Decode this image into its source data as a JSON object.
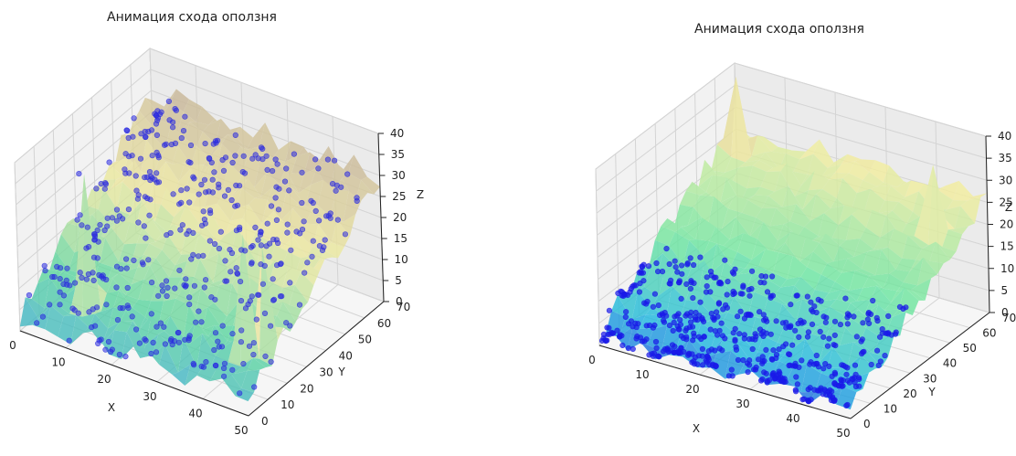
{
  "chart_data": [
    {
      "type": "scatter",
      "subtype": "3d-surface-with-scatter",
      "title": "Анимация схода оползня",
      "xlabel": "X",
      "ylabel": "Y",
      "zlabel": "Z",
      "xticks": [
        "0",
        "10",
        "20",
        "30",
        "40",
        "50"
      ],
      "yticks": [
        "0",
        "10",
        "20",
        "30",
        "40",
        "50",
        "60",
        "70"
      ],
      "zticks": [
        "0",
        "5",
        "10",
        "15",
        "20",
        "25",
        "30",
        "35",
        "40"
      ],
      "xlim": [
        0,
        50
      ],
      "ylim": [
        0,
        70
      ],
      "zlim": [
        0,
        40
      ],
      "grid": true,
      "colormap": "terrain",
      "surface_color_low": "#3aa0d8",
      "surface_color_mid": "#f0eea0",
      "surface_color_high": "#b5a490",
      "point_color": "#2a2ae0",
      "points_distribution": "spread over slope",
      "point_count": 420
    },
    {
      "type": "scatter",
      "subtype": "3d-surface-with-scatter",
      "title": "Анимация схода оползня",
      "xlabel": "X",
      "ylabel": "Y",
      "zlabel": "Z",
      "xticks": [
        "0",
        "10",
        "20",
        "30",
        "40",
        "50"
      ],
      "yticks": [
        "0",
        "10",
        "20",
        "30",
        "40",
        "50",
        "60",
        "70"
      ],
      "zticks": [
        "0",
        "5",
        "10",
        "15",
        "20",
        "25",
        "30",
        "35",
        "40"
      ],
      "xlim": [
        0,
        50
      ],
      "ylim": [
        0,
        70
      ],
      "zlim": [
        0,
        40
      ],
      "grid": true,
      "colormap": "terrain",
      "surface_color_low": "#2060e0",
      "surface_color_mid": "#60e0a0",
      "surface_color_high": "#f2eca0",
      "point_color": "#1a1ae8",
      "points_distribution": "accumulated at base",
      "point_count": 520
    }
  ]
}
